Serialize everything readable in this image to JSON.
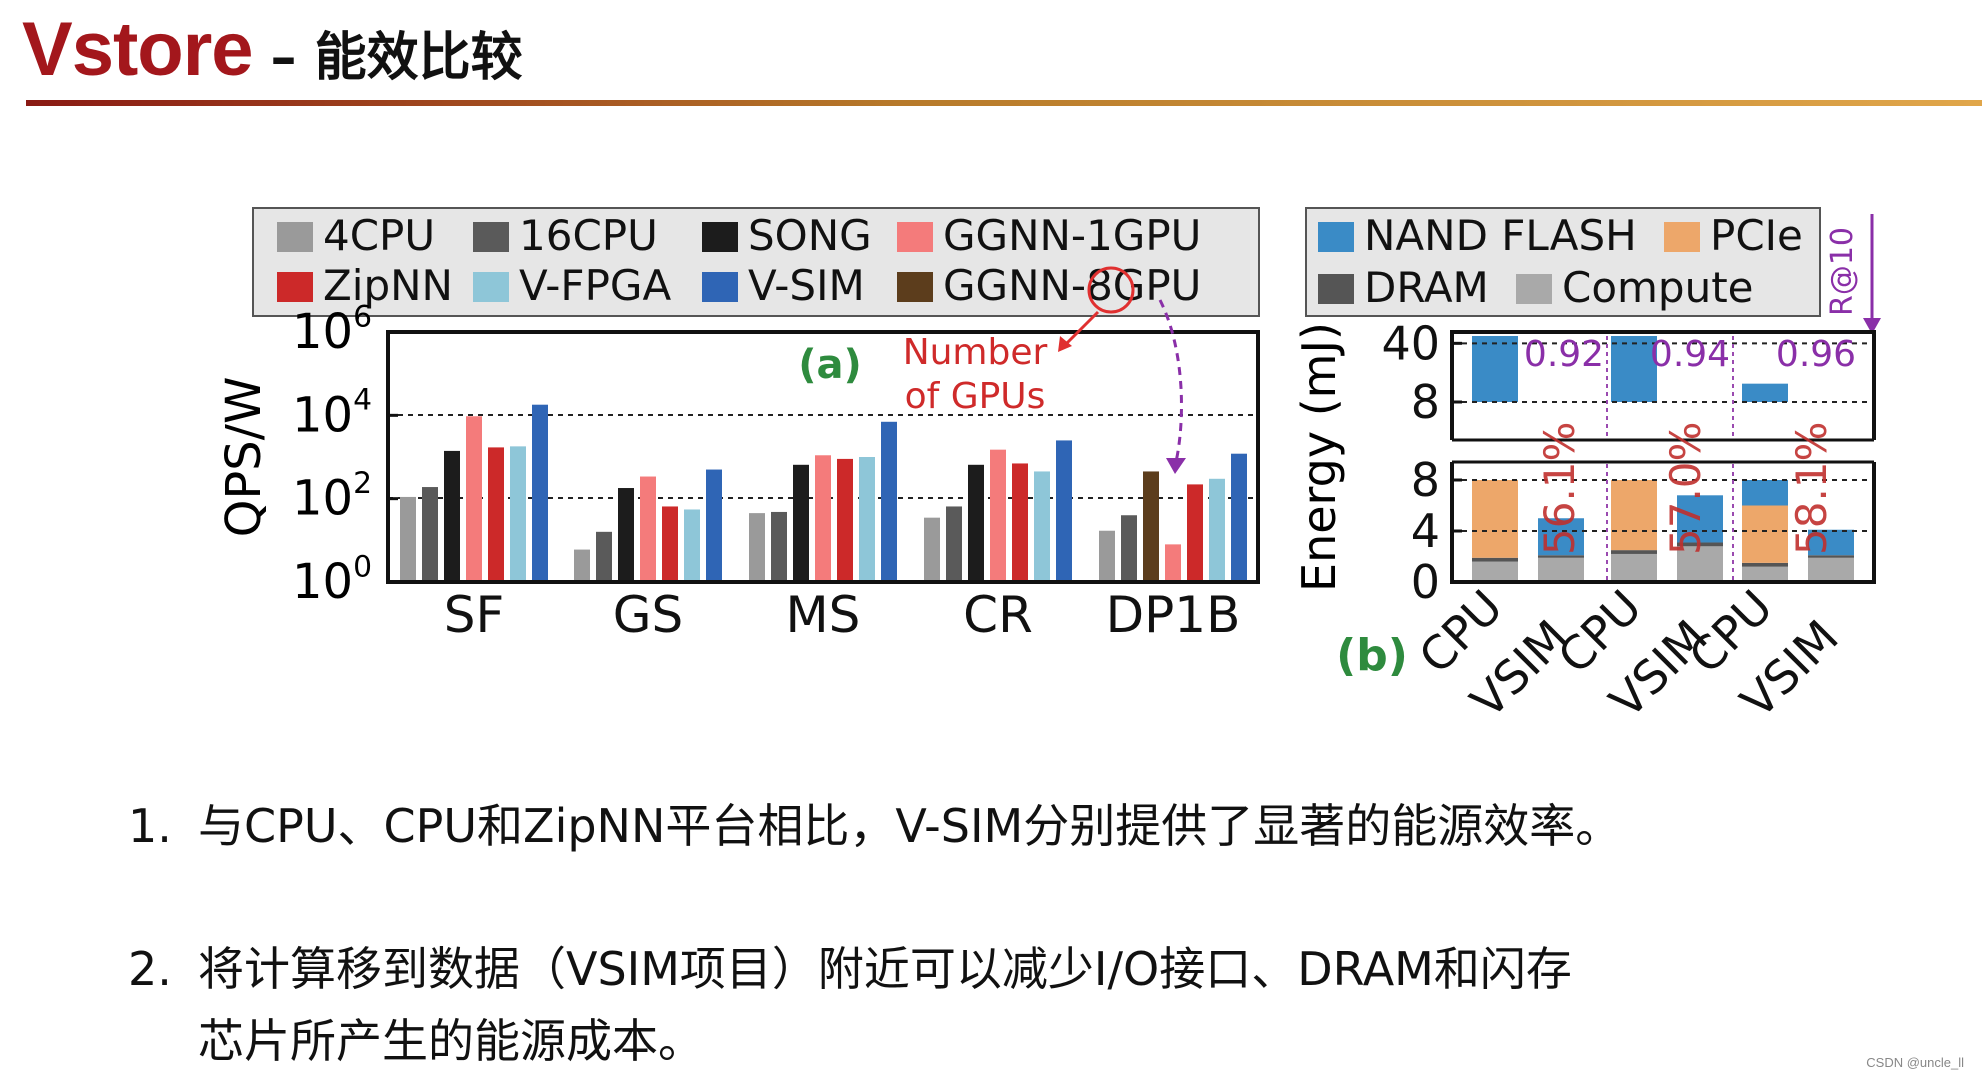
{
  "slide": {
    "title": "Vstore",
    "subtitle": "– 能效比较",
    "watermark": "CSDN @uncle_ll"
  },
  "bullets": [
    {
      "number": "1.",
      "lines": [
        "与CPU、CPU和ZipNN平台相比，V-SIM分别提供了显著的能源效率。"
      ]
    },
    {
      "number": "2.",
      "lines": [
        "将计算移到数据（VSIM项目）附近可以减少I/O接口、DRAM和闪存",
        "芯片所产生的能源成本。"
      ]
    }
  ],
  "chart_data": [
    {
      "panel": "(a)",
      "type": "bar",
      "ylabel": "QPS/W",
      "yscale": "log",
      "ylim": [
        1,
        1000000
      ],
      "yticks": [
        "10^0",
        "10^2",
        "10^4",
        "10^6"
      ],
      "dashed_reference_lines": [
        100,
        10000
      ],
      "categories": [
        "SF",
        "GS",
        "MS",
        "CR",
        "DP1B"
      ],
      "legend_position": "top",
      "series": [
        {
          "name": "4CPU",
          "color": "#9a9a9a",
          "values": [
            110,
            6,
            45,
            35,
            17
          ]
        },
        {
          "name": "16CPU",
          "color": "#5a5a5a",
          "values": [
            190,
            16,
            48,
            65,
            40
          ]
        },
        {
          "name": "SONG",
          "color": "#1c1c1c",
          "values": [
            1400,
            180,
            650,
            650,
            null
          ]
        },
        {
          "name": "GGNN-1GPU",
          "color": "#f47b7b",
          "values": [
            9500,
            340,
            1100,
            1500,
            8
          ]
        },
        {
          "name": "GGNN-8GPU",
          "color": "#5c3d1c",
          "values": [
            null,
            null,
            null,
            null,
            450
          ]
        },
        {
          "name": "ZipNN",
          "color": "#cc2929",
          "values": [
            1700,
            65,
            900,
            700,
            220
          ]
        },
        {
          "name": "V-FPGA",
          "color": "#8ec6d8",
          "values": [
            1800,
            55,
            1000,
            450,
            300
          ]
        },
        {
          "name": "V-SIM",
          "color": "#2f65b5",
          "values": [
            18000,
            500,
            7000,
            2500,
            1200
          ]
        }
      ],
      "annotations": {
        "panel_label": "(a)",
        "gpu_note": [
          "Number",
          "of GPUs"
        ]
      }
    },
    {
      "panel": "(b)",
      "type": "bar",
      "stacked": true,
      "ylabel": "Energy (mJ)",
      "axis_break": true,
      "lower_yticks": [
        "0",
        "4",
        "8"
      ],
      "upper_yticks": [
        "8",
        "40"
      ],
      "categories": [
        "CPU",
        "VSIM",
        "CPU",
        "VSIM",
        "CPU",
        "VSIM"
      ],
      "legend_position": "top",
      "series": [
        {
          "name": "NAND FLASH",
          "color": "#3a8bc6"
        },
        {
          "name": "PCIe",
          "color": "#eda76a"
        },
        {
          "name": "DRAM",
          "color": "#555555"
        },
        {
          "name": "Compute",
          "color": "#a9a9a9"
        }
      ],
      "stacks": [
        {
          "Compute": 1.6,
          "DRAM": 0.3,
          "PCIe": 6.1,
          "NAND FLASH": 38
        },
        {
          "Compute": 1.9,
          "DRAM": 0.2,
          "PCIe": 0.0,
          "NAND FLASH": 2.9
        },
        {
          "Compute": 2.2,
          "DRAM": 0.3,
          "PCIe": 5.5,
          "NAND FLASH": 42
        },
        {
          "Compute": 2.8,
          "DRAM": 0.3,
          "PCIe": 0.0,
          "NAND FLASH": 3.7
        },
        {
          "Compute": 1.2,
          "DRAM": 0.3,
          "PCIe": 4.5,
          "NAND FLASH": 12
        },
        {
          "Compute": 1.9,
          "DRAM": 0.2,
          "PCIe": 0.0,
          "NAND FLASH": 2.0
        }
      ],
      "recall_labels": [
        "0.92",
        "0.94",
        "0.96"
      ],
      "savings_labels": [
        "56.1%",
        "57.0%",
        "58.1%"
      ],
      "recall_axis_label": "R@10",
      "panel_label": "(b)"
    }
  ]
}
